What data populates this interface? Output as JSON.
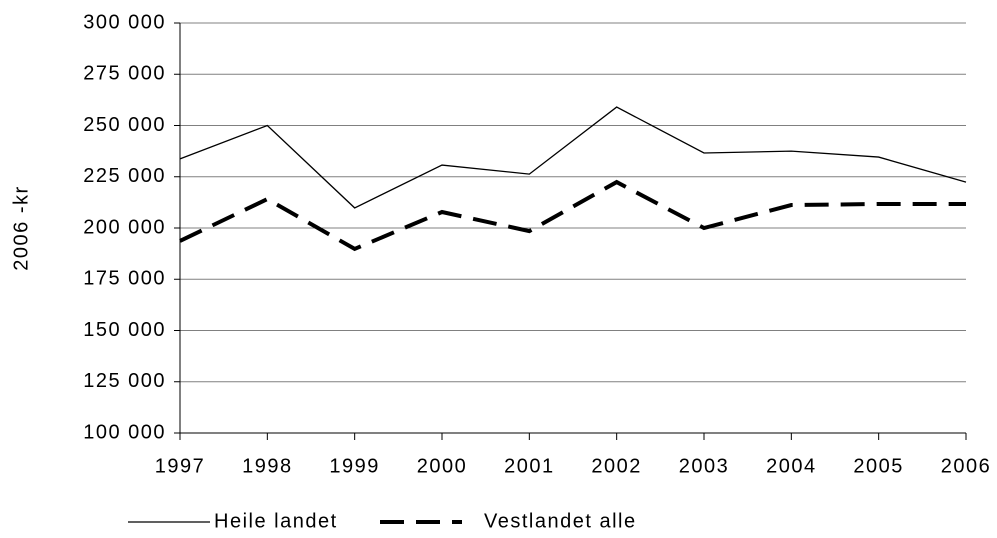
{
  "chart_data": {
    "type": "line",
    "y_label": "2006 -kr",
    "categories": [
      "1997",
      "1998",
      "1999",
      "2000",
      "2001",
      "2002",
      "2003",
      "2004",
      "2005",
      "2006"
    ],
    "series": [
      {
        "name": "Heile landet",
        "color": "#000000",
        "dash": false,
        "values": [
          233700,
          250000,
          209800,
          230700,
          226300,
          259000,
          236600,
          237500,
          234600,
          222400
        ]
      },
      {
        "name": "Vestlandet alle",
        "color": "#000000",
        "dash": true,
        "values": [
          193700,
          214100,
          189800,
          207800,
          198500,
          222400,
          200000,
          211200,
          211700,
          211700
        ]
      }
    ],
    "ylim": [
      100000,
      300000
    ],
    "yticks": [
      {
        "value": 100000,
        "label": "100 000"
      },
      {
        "value": 125000,
        "label": "125 000"
      },
      {
        "value": 150000,
        "label": "150 000"
      },
      {
        "value": 175000,
        "label": "175 000"
      },
      {
        "value": 200000,
        "label": "200 000"
      },
      {
        "value": 225000,
        "label": "225 000"
      },
      {
        "value": 250000,
        "label": "250 000"
      },
      {
        "value": 275000,
        "label": "275 000"
      },
      {
        "value": 300000,
        "label": "300 000"
      }
    ],
    "grid": true,
    "legend": "bottom"
  }
}
